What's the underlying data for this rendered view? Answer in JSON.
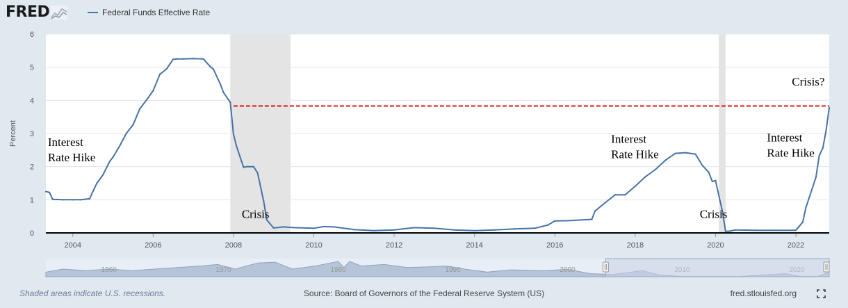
{
  "header": {
    "logo_text": "FRED",
    "legend_label": "Federal Funds Effective Rate"
  },
  "colors": {
    "series": "#4572a7",
    "recession": "#e4e4e4",
    "reference_line": "#dd0000",
    "navigator_fill": "#b6c4d8",
    "navigator_window": "#c8d4e6"
  },
  "icons": [
    "line-chart-logo-icon",
    "fullscreen-icon"
  ],
  "footer": {
    "note": "Shaded areas indicate U.S. recessions.",
    "source": "Source: Board of Governors of the Federal Reserve System (US)",
    "site": "fred.stlouisfed.org"
  },
  "chart_data": {
    "type": "line",
    "ylabel": "Percent",
    "xlim": [
      2003.33,
      2022.83
    ],
    "ylim": [
      0,
      6
    ],
    "yticks": [
      0,
      1,
      2,
      3,
      4,
      5,
      6
    ],
    "xticks": [
      "2004",
      "2006",
      "2008",
      "2010",
      "2012",
      "2014",
      "2016",
      "2018",
      "2020",
      "2022"
    ],
    "grid": true,
    "legend_position": "top-left",
    "series": [
      {
        "name": "Federal Funds Effective Rate",
        "x": [
          2003.33,
          2003.42,
          2003.5,
          2003.6,
          2003.75,
          2004.0,
          2004.2,
          2004.42,
          2004.5,
          2004.6,
          2004.75,
          2004.92,
          2005.0,
          2005.17,
          2005.33,
          2005.5,
          2005.67,
          2005.83,
          2006.0,
          2006.17,
          2006.33,
          2006.5,
          2006.6,
          2006.75,
          2007.0,
          2007.25,
          2007.42,
          2007.5,
          2007.67,
          2007.75,
          2007.92,
          2008.0,
          2008.08,
          2008.25,
          2008.33,
          2008.5,
          2008.6,
          2008.75,
          2008.83,
          2009.0,
          2009.25,
          2009.5,
          2010.0,
          2010.25,
          2010.5,
          2011.0,
          2011.5,
          2012.0,
          2012.5,
          2013.0,
          2013.5,
          2014.0,
          2014.5,
          2015.0,
          2015.5,
          2015.83,
          2016.0,
          2016.33,
          2016.92,
          2017.0,
          2017.25,
          2017.5,
          2017.75,
          2018.0,
          2018.25,
          2018.5,
          2018.75,
          2019.0,
          2019.25,
          2019.5,
          2019.67,
          2019.83,
          2019.92,
          2020.0,
          2020.17,
          2020.25,
          2020.33,
          2020.5,
          2021.0,
          2021.5,
          2022.0,
          2022.17,
          2022.25,
          2022.5,
          2022.58,
          2022.67,
          2022.75,
          2022.83
        ],
        "y": [
          1.25,
          1.22,
          1.01,
          1.01,
          1.0,
          1.0,
          1.0,
          1.03,
          1.25,
          1.5,
          1.75,
          2.16,
          2.28,
          2.63,
          3.0,
          3.26,
          3.75,
          4.0,
          4.29,
          4.79,
          4.94,
          5.24,
          5.25,
          5.25,
          5.26,
          5.25,
          5.02,
          4.94,
          4.5,
          4.24,
          3.94,
          2.98,
          2.6,
          1.98,
          2.0,
          2.0,
          1.81,
          0.97,
          0.39,
          0.15,
          0.18,
          0.16,
          0.14,
          0.19,
          0.18,
          0.1,
          0.07,
          0.09,
          0.16,
          0.14,
          0.09,
          0.07,
          0.09,
          0.12,
          0.14,
          0.24,
          0.36,
          0.37,
          0.41,
          0.66,
          0.91,
          1.15,
          1.15,
          1.41,
          1.69,
          1.91,
          2.19,
          2.4,
          2.42,
          2.38,
          2.04,
          1.83,
          1.55,
          1.58,
          0.65,
          0.05,
          0.05,
          0.09,
          0.08,
          0.08,
          0.08,
          0.33,
          0.77,
          1.68,
          2.33,
          2.56,
          3.08,
          3.78
        ]
      }
    ],
    "recessions": [
      [
        2007.92,
        2009.42
      ],
      [
        2020.08,
        2020.25
      ]
    ],
    "reference_line": {
      "y": 3.83,
      "x_start": 2008.0,
      "x_end": 2022.83,
      "style": "dashed"
    },
    "annotations": [
      {
        "text": [
          "Interest",
          "Rate Hike"
        ],
        "x": 2003.38,
        "y": 2.62
      },
      {
        "text": [
          "Crisis"
        ],
        "x": 2008.55,
        "y": 0.45,
        "anchor": "middle"
      },
      {
        "text": [
          "Interest",
          "Rate Hike"
        ],
        "x": 2017.4,
        "y": 2.72
      },
      {
        "text": [
          "Crisis"
        ],
        "x": 2019.95,
        "y": 0.45,
        "anchor": "middle"
      },
      {
        "text": [
          "Interest",
          "Rate Hike"
        ],
        "x": 2021.28,
        "y": 2.76
      },
      {
        "text": [
          "Crisis?"
        ],
        "x": 2021.9,
        "y": 4.45
      }
    ],
    "navigator": {
      "labels": [
        "1960",
        "1970",
        "1980",
        "1990",
        "2000",
        "2010",
        "2020"
      ],
      "range": [
        1954.5,
        2022.83
      ],
      "selected": [
        2003.33,
        2022.83
      ]
    }
  }
}
